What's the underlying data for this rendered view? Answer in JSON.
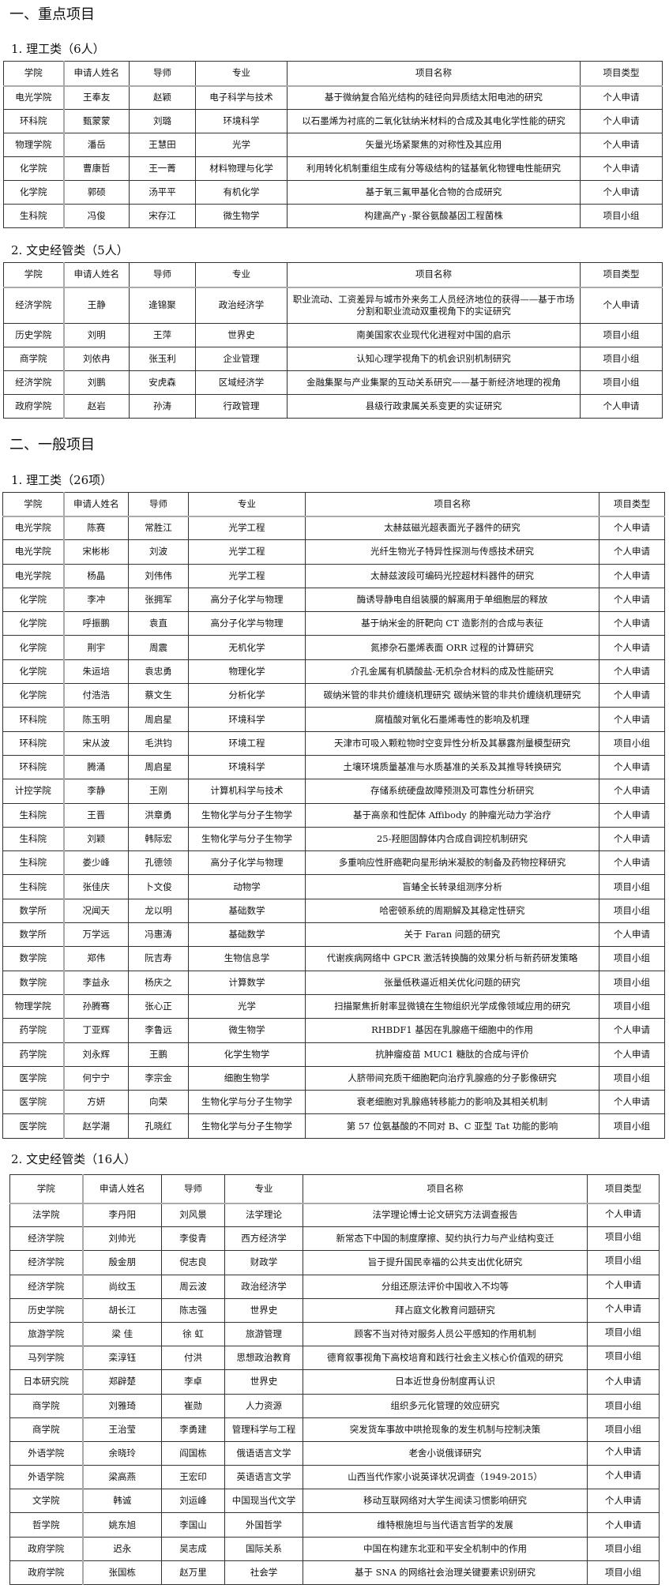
{
  "sections": [
    {
      "title": "一、重点项目"
    },
    {
      "title": "二、一般项目"
    }
  ],
  "headers": [
    "学院",
    "申请人姓名",
    "导师",
    "专业",
    "项目名称",
    "项目类型"
  ],
  "tables": [
    {
      "title": "1. 理工类（6人）",
      "rows": [
        [
          "电光学院",
          "王奉友",
          "赵颖",
          "电子科学与技术",
          "基于微纳复合陷光结构的硅径向异质结太阳电池的研究",
          "个人申请"
        ],
        [
          "环科院",
          "甄蒙蒙",
          "刘璐",
          "环境科学",
          "以石墨烯为衬底的二氧化钛纳米材料的合成及其电化学性能的研究",
          "个人申请"
        ],
        [
          "物理学院",
          "潘岳",
          "王慧田",
          "光学",
          "矢量光场紧聚焦的对称性及其应用",
          "个人申请"
        ],
        [
          "化学院",
          "曹康哲",
          "王一菁",
          "材料物理与化学",
          "利用转化机制重组生成有分等级结构的锰基氧化物锂电性能研究",
          "个人申请"
        ],
        [
          "化学院",
          "郭硕",
          "汤平平",
          "有机化学",
          "基于氧三氟甲基化合物的合成研究",
          "个人申请"
        ],
        [
          "生科院",
          "冯俊",
          "宋存江",
          "微生物学",
          "构建高产γ -聚谷氨酸基因工程菌株",
          "项目小组"
        ]
      ]
    },
    {
      "title": "2. 文史经管类（5人）",
      "rows": [
        [
          "经济学院",
          "王静",
          "逄锦聚",
          "政治经济学",
          "职业流动、工资差异与城市外来务工人员经济地位的获得——基于市场分割和职业流动双重视角下的实证研究",
          "个人申请"
        ],
        [
          "历史学院",
          "刘明",
          "王萍",
          "世界史",
          "南美国家农业现代化进程对中国的启示",
          "项目小组"
        ],
        [
          "商学院",
          "刘依冉",
          "张玉利",
          "企业管理",
          "认知心理学视角下的机会识别机制研究",
          "项目小组"
        ],
        [
          "经济学院",
          "刘鹏",
          "安虎森",
          "区域经济学",
          "金融集聚与产业集聚的互动关系研究——基于新经济地理的视角",
          "项目小组"
        ],
        [
          "政府学院",
          "赵岩",
          "孙涛",
          "行政管理",
          "县级行政隶属关系变更的实证研究",
          "个人申请"
        ]
      ]
    },
    {
      "title": "1. 理工类（26项）",
      "rows": [
        [
          "电光学院",
          "陈赛",
          "常胜江",
          "光学工程",
          "太赫兹磁光超表面光子器件的研究",
          "个人申请"
        ],
        [
          "电光学院",
          "宋彬彬",
          "刘波",
          "光学工程",
          "光纤生物光子特异性探测与传感技术研究",
          "个人申请"
        ],
        [
          "电光学院",
          "杨晶",
          "刘伟伟",
          "光学工程",
          "太赫兹波段可编码光控超材料器件的研究",
          "个人申请"
        ],
        [
          "化学院",
          "李冲",
          "张拥军",
          "高分子化学与物理",
          "酶诱导静电自组装膜的解离用于单细胞层的释放",
          "个人申请"
        ],
        [
          "化学院",
          "呼振鹏",
          "袁直",
          "高分子化学与物理",
          "基于纳米金的肝靶向 CT 造影剂的合成与表征",
          "个人申请"
        ],
        [
          "化学院",
          "荆宇",
          "周震",
          "无机化学",
          "氮掺杂石墨烯表面 ORR 过程的计算研究",
          "个人申请"
        ],
        [
          "化学院",
          "朱运培",
          "袁忠勇",
          "物理化学",
          "介孔金属有机膦酸盐-无机杂合材料的成及性能研究",
          "个人申请"
        ],
        [
          "化学院",
          "付浩浩",
          "蔡文生",
          "分析化学",
          "碳纳米管的非共价缠绕机理研究 碳纳米管的非共价缠绕机理研究",
          "个人申请"
        ],
        [
          "环科院",
          "陈玉明",
          "周启星",
          "环境科学",
          "腐植酸对氧化石墨烯毒性的影响及机理",
          "个人申请"
        ],
        [
          "环科院",
          "宋从波",
          "毛洪钧",
          "环境工程",
          "天津市可吸入颗粒物时空变异性分析及其暴露剂量模型研究",
          "项目小组"
        ],
        [
          "环科院",
          "腾涌",
          "周启星",
          "环境科学",
          "土壤环境质量基准与水质基准的关系及其推导转换研究",
          "个人申请"
        ],
        [
          "计控学院",
          "李静",
          "王刚",
          "计算机科学与技术",
          "存储系统硬盘故障预测及可靠性分析研究",
          "个人申请"
        ],
        [
          "生科院",
          "王晋",
          "洪章勇",
          "生物化学与分子生物学",
          "基于高亲和性配体 Affibody 的肿瘤光动力学治疗",
          "个人申请"
        ],
        [
          "生科院",
          "刘颖",
          "韩际宏",
          "生物化学与分子生物学",
          "25-羟胆固醇体内合成自调控机制研究",
          "个人申请"
        ],
        [
          "生科院",
          "娄少峰",
          "孔德领",
          "高分子化学与物理",
          "多重响应性肝癌靶向星形纳米凝胶的制备及药物控释研究",
          "个人申请"
        ],
        [
          "生科院",
          "张佳庆",
          "卜文俊",
          "动物学",
          "盲蝽全长转录组测序分析",
          "项目小组"
        ],
        [
          "数学所",
          "况闻天",
          "龙以明",
          "基础数学",
          "哈密顿系统的周期解及其稳定性研究",
          "项目小组"
        ],
        [
          "数学所",
          "万学远",
          "冯惠涛",
          "基础数学",
          "关于 Faran 问题的研究",
          "个人申请"
        ],
        [
          "数学院",
          "郑伟",
          "阮吉寿",
          "生物信息学",
          "代谢疾病网络中 GPCR 激活转换酶的效果分析与新药研发策略",
          "项目小组"
        ],
        [
          "数学院",
          "李益永",
          "杨庆之",
          "计算数学",
          "张量低秩逼近相关优化问题的研究",
          "项目小组"
        ],
        [
          "物理学院",
          "孙腾骞",
          "张心正",
          "光学",
          "扫描聚焦折射率显微镜在生物组织光学成像领域应用的研究",
          "项目小组"
        ],
        [
          "药学院",
          "丁亚辉",
          "李鲁远",
          "微生物学",
          "RHBDF1 基因在乳腺癌干细胞中的作用",
          "个人申请"
        ],
        [
          "药学院",
          "刘永辉",
          "王鹏",
          "化学生物学",
          "抗肿瘤疫苗 MUC1 糖肽的合成与评价",
          "个人申请"
        ],
        [
          "医学院",
          "何宁宁",
          "李宗金",
          "细胞生物学",
          "人脐带间充质干细胞靶向治疗乳腺癌的分子影像研究",
          "项目小组"
        ],
        [
          "医学院",
          "方妍",
          "向荣",
          "生物化学与分子生物学",
          "衰老细胞对乳腺癌转移能力的影响及其相关机制",
          "个人申请"
        ],
        [
          "医学院",
          "赵学潮",
          "孔晓红",
          "生物化学与分子生物学",
          "第 57 位氨基酸的不同对 B、C 亚型 Tat 功能的影响",
          "项目小组"
        ]
      ]
    },
    {
      "title": "2. 文史经管类（16人）",
      "rows": [
        [
          "法学院",
          "李丹阳",
          "刘风景",
          "法学理论",
          "法学理论博士论文研究方法调查报告",
          "个人申请"
        ],
        [
          "经济学院",
          "刘帅光",
          "李俊青",
          "西方经济学",
          "新常态下中国的制度摩擦、契约执行力与产业结构变迁",
          "项目小组"
        ],
        [
          "经济学院",
          "殷金朋",
          "倪志良",
          "财政学",
          "旨于提升国民幸福的公共支出优化研究",
          "项目小组"
        ],
        [
          "经济学院",
          "尚纹玉",
          "周云波",
          "政治经济学",
          "分组还原法评价中国收入不均等",
          "个人申请"
        ],
        [
          "历史学院",
          "胡长江",
          "陈志强",
          "世界史",
          "拜占庭文化教育问题研究",
          "个人申请"
        ],
        [
          "旅游学院",
          "梁  佳",
          "徐  虹",
          "旅游管理",
          "顾客不当对待对服务人员公平感知的作用机制",
          "项目小组"
        ],
        [
          "马列学院",
          "栾淳钰",
          "付洪",
          "思想政治教育",
          "德育叙事视角下高校培育和践行社会主义核心价值观的研究",
          "项目小组"
        ],
        [
          "日本研究院",
          "郑辟楚",
          "李卓",
          "世界史",
          "日本近世身份制度再认识",
          "个人申请"
        ],
        [
          "商学院",
          "刘雅琦",
          "崔勋",
          "人力资源",
          "组织多元化管理的效应研究",
          "项目小组"
        ],
        [
          "商学院",
          "王治莹",
          "李勇建",
          "管理科学与工程",
          "突发货车事故中哄抢现象的发生机制与控制决策",
          "项目小组"
        ],
        [
          "外语学院",
          "余晓玲",
          "阎国栋",
          "俄语语言文学",
          "老舍小说俄译研究",
          "个人申请"
        ],
        [
          "外语学院",
          "梁高燕",
          "王宏印",
          "英语语言文学",
          "山西当代作家小说英译状况调查（1949-2015）",
          "个人申请"
        ],
        [
          "文学院",
          "韩诚",
          "刘运峰",
          "中国现当代文学",
          "移动互联网络对大学生阅读习惯影响研究",
          "个人申请"
        ],
        [
          "哲学院",
          "姚东旭",
          "李国山",
          "外国哲学",
          "维特根施坦与当代语言哲学的发展",
          "个人申请"
        ],
        [
          "政府学院",
          "迟永",
          "吴志成",
          "国际关系",
          "中国在构建东北亚和平安全机制中的作用",
          "项目小组"
        ],
        [
          "政府学院",
          "张国栋",
          "赵万里",
          "社会学",
          "基于 SNA 的网络社会治理关键要素识别研究",
          "项目小组"
        ]
      ]
    }
  ]
}
